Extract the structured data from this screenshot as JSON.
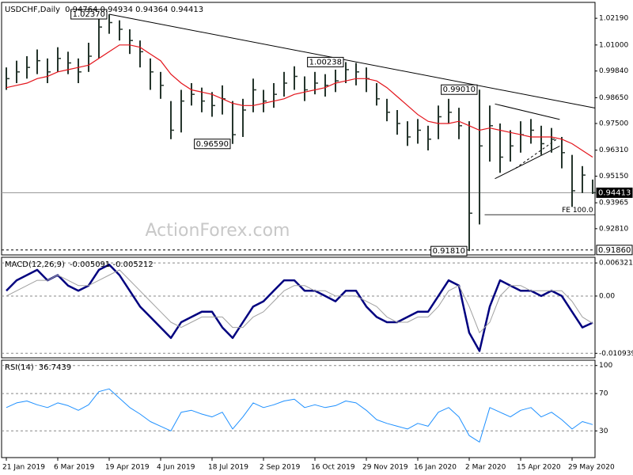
{
  "chart_data": [
    {
      "type": "hlc",
      "title": "USDCHF,Daily",
      "subtitle": "0.94764 0.94934 0.94364 0.94413",
      "color": "#25352c",
      "high": [
        1.0,
        1.003,
        1.005,
        1.008,
        1.004,
        1.009,
        1.007,
        1.004,
        1.011,
        1.022,
        1.0237,
        1.021,
        1.017,
        1.012,
        1.004,
        0.998,
        0.985,
        0.99,
        0.993,
        0.991,
        0.989,
        0.992,
        0.985,
        0.986,
        0.995,
        0.99,
        0.993,
        0.998,
        1.0005,
        0.996,
        0.998,
        0.997,
        0.999,
        1.00238,
        1.002,
        1.0,
        0.993,
        0.986,
        0.981,
        0.976,
        0.977,
        0.974,
        0.983,
        0.986,
        0.982,
        0.976,
        0.9901,
        0.983,
        0.975,
        0.972,
        0.976,
        0.977,
        0.974,
        0.973,
        0.969,
        0.961,
        0.956,
        0.95
      ],
      "low": [
        0.99,
        0.993,
        0.995,
        0.997,
        0.993,
        0.998,
        0.997,
        0.993,
        0.998,
        1.004,
        1.015,
        1.012,
        1.006,
        1.0,
        0.99,
        0.986,
        0.968,
        0.971,
        0.983,
        0.98,
        0.978,
        0.979,
        0.9659,
        0.969,
        0.98,
        0.98,
        0.982,
        0.987,
        0.99,
        0.985,
        0.988,
        0.987,
        0.989,
        0.993,
        0.992,
        0.989,
        0.983,
        0.976,
        0.97,
        0.965,
        0.966,
        0.963,
        0.968,
        0.975,
        0.968,
        0.9181,
        0.93,
        0.958,
        0.953,
        0.958,
        0.962,
        0.966,
        0.961,
        0.962,
        0.955,
        0.9378,
        0.944,
        0.9436
      ],
      "close": [
        0.995,
        0.998,
        1.0,
        1.003,
        0.998,
        1.004,
        1.002,
        0.998,
        1.005,
        1.018,
        1.02,
        1.017,
        1.012,
        1.007,
        0.998,
        0.992,
        0.972,
        0.985,
        0.988,
        0.985,
        0.983,
        0.986,
        0.97,
        0.981,
        0.99,
        0.985,
        0.988,
        0.993,
        0.996,
        0.99,
        0.993,
        0.992,
        0.994,
        0.999,
        0.998,
        0.995,
        0.986,
        0.98,
        0.975,
        0.969,
        0.972,
        0.968,
        0.978,
        0.98,
        0.974,
        0.935,
        0.965,
        0.974,
        0.96,
        0.965,
        0.97,
        0.972,
        0.966,
        0.968,
        0.962,
        0.945,
        0.952,
        0.94413
      ],
      "lines": [
        {
          "color": "#e3141b",
          "width": 1.2,
          "values": [
            0.991,
            0.992,
            0.993,
            0.995,
            0.996,
            0.998,
            0.999,
            1.0,
            1.001,
            1.004,
            1.007,
            1.01,
            1.01,
            1.009,
            1.006,
            1.003,
            0.997,
            0.993,
            0.99,
            0.989,
            0.988,
            0.986,
            0.984,
            0.983,
            0.983,
            0.984,
            0.985,
            0.986,
            0.988,
            0.989,
            0.99,
            0.991,
            0.993,
            0.994,
            0.995,
            0.995,
            0.994,
            0.991,
            0.987,
            0.983,
            0.979,
            0.976,
            0.975,
            0.975,
            0.976,
            0.974,
            0.972,
            0.973,
            0.972,
            0.971,
            0.97,
            0.969,
            0.969,
            0.969,
            0.968,
            0.966,
            0.963,
            0.96
          ]
        }
      ],
      "ylim": [
        0.9164,
        1.029
      ],
      "yticks": [
        {
          "value": 1.0219,
          "label": "1.02190"
        },
        {
          "value": 1.01,
          "label": "1.01000"
        },
        {
          "value": 0.9984,
          "label": "0.99840"
        },
        {
          "value": 0.9865,
          "label": "0.98650"
        },
        {
          "value": 0.975,
          "label": "0.97500"
        },
        {
          "value": 0.9631,
          "label": "0.96310"
        },
        {
          "value": 0.9515,
          "label": "0.95150"
        },
        0.93965,
        {
          "value": 0.9281,
          "label": "0.92810"
        }
      ],
      "grid": false,
      "hlines": [
        {
          "value": 0.94413,
          "label": "0.94413",
          "dash": false
        },
        {
          "value": 0.9186,
          "label": "0.91860",
          "dash": true
        }
      ],
      "trendlines": [
        {
          "x": [
            10,
            57.2
          ],
          "y": [
            1.0237,
            0.9819
          ],
          "dash": false
        },
        {
          "x": [
            47.5,
            53.8
          ],
          "y": [
            0.9837,
            0.9768
          ],
          "dash": false
        },
        {
          "x": [
            47.5,
            53.8
          ],
          "y": [
            0.9504,
            0.9649
          ],
          "dash": false
        },
        {
          "x": [
            49.5,
            53.5
          ],
          "y": [
            0.955,
            0.968
          ],
          "dash": true
        }
      ],
      "fe": {
        "label": "FE 100.0",
        "value": 0.9343,
        "x": [
          46.5,
          57.2
        ]
      },
      "annotations": [
        {
          "label": "1.02370",
          "value": 1.0237,
          "x": 10
        },
        {
          "label": "1.00238",
          "value": 1.00238,
          "x": 33
        },
        {
          "label": "0.99010",
          "value": 0.9901,
          "x": 46
        },
        {
          "label": "0.96590",
          "value": 0.9659,
          "x": 22
        },
        {
          "label": "0.91810",
          "value": 0.9181,
          "x": 45
        }
      ],
      "watermark": "ActionForex.com"
    },
    {
      "type": "line",
      "title": "MACD(12,26,9)",
      "subtitle": "-0.005091 -0.005212",
      "series": [
        {
          "color": "#00007f",
          "width": 2.5,
          "values": [
            0.001,
            0.003,
            0.004,
            0.005,
            0.003,
            0.004,
            0.002,
            0.001,
            0.002,
            0.005,
            0.006,
            0.004,
            0.001,
            -0.002,
            -0.004,
            -0.006,
            -0.008,
            -0.005,
            -0.004,
            -0.003,
            -0.003,
            -0.006,
            -0.008,
            -0.005,
            -0.002,
            -0.001,
            0.001,
            0.003,
            0.003,
            0.001,
            0.001,
            0.0,
            -0.001,
            0.001,
            0.001,
            -0.002,
            -0.004,
            -0.005,
            -0.005,
            -0.004,
            -0.003,
            -0.003,
            0.0,
            0.003,
            0.002,
            -0.007,
            -0.0105,
            -0.002,
            0.003,
            0.002,
            0.001,
            0.001,
            0.0,
            0.001,
            0.0,
            -0.003,
            -0.006,
            -0.005091
          ]
        },
        {
          "color": "#a0a0a0",
          "width": 1,
          "values": [
            0.0,
            0.001,
            0.002,
            0.003,
            0.003,
            0.004,
            0.003,
            0.002,
            0.002,
            0.003,
            0.004,
            0.005,
            0.003,
            0.001,
            -0.001,
            -0.003,
            -0.005,
            -0.006,
            -0.005,
            -0.004,
            -0.004,
            -0.004,
            -0.006,
            -0.006,
            -0.004,
            -0.003,
            -0.001,
            0.001,
            0.002,
            0.002,
            0.001,
            0.001,
            0.0,
            0.0,
            0.0,
            -0.001,
            -0.002,
            -0.004,
            -0.005,
            -0.005,
            -0.004,
            -0.004,
            -0.002,
            0.001,
            0.002,
            -0.002,
            -0.007,
            -0.005,
            0.0,
            0.002,
            0.002,
            0.001,
            0.001,
            0.001,
            0.001,
            -0.001,
            -0.004,
            -0.005212
          ]
        }
      ],
      "ylim": [
        -0.0118,
        0.0074
      ],
      "yticks": [
        0.006321,
        {
          "value": 0,
          "label": "0.00"
        },
        -0.010939
      ],
      "grid": true
    },
    {
      "type": "line",
      "title": "RSI(14)",
      "subtitle": "36.7439",
      "series": [
        {
          "color": "#1e90ff",
          "width": 1,
          "values": [
            55,
            60,
            62,
            58,
            55,
            60,
            57,
            52,
            58,
            72,
            75,
            65,
            55,
            48,
            40,
            35,
            30,
            50,
            52,
            48,
            45,
            50,
            32,
            45,
            60,
            55,
            58,
            62,
            64,
            55,
            58,
            55,
            57,
            62,
            60,
            52,
            42,
            38,
            35,
            32,
            38,
            35,
            50,
            55,
            45,
            25,
            18,
            55,
            50,
            45,
            52,
            55,
            45,
            50,
            42,
            32,
            40,
            36.7439
          ]
        }
      ],
      "ylim": [
        1.4,
        105.7
      ],
      "yticks": [
        100,
        70,
        30
      ],
      "grid": true,
      "categories": [
        "21 Jan 2019",
        null,
        null,
        null,
        null,
        "6 Mar 2019",
        null,
        null,
        null,
        null,
        "19 Apr 2019",
        null,
        null,
        null,
        null,
        "4 Jun 2019",
        null,
        null,
        null,
        null,
        "18 Jul 2019",
        null,
        null,
        null,
        null,
        "2 Sep 2019",
        null,
        null,
        null,
        null,
        "16 Oct 2019",
        null,
        null,
        null,
        null,
        "29 Nov 2019",
        null,
        null,
        null,
        null,
        "16 Jan 2020",
        null,
        null,
        null,
        null,
        "2 Mar 2020",
        null,
        null,
        null,
        null,
        "15 Apr 2020",
        null,
        null,
        null,
        null,
        "29 May 2020",
        null,
        null
      ]
    }
  ]
}
